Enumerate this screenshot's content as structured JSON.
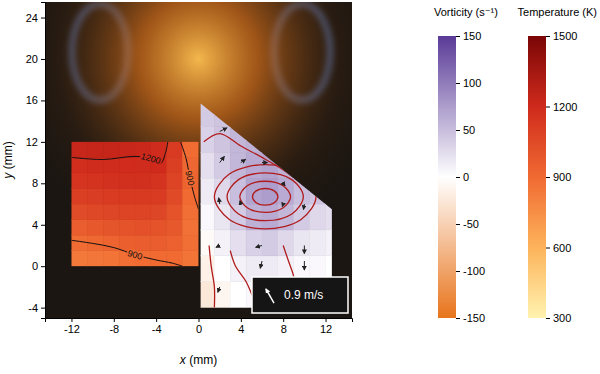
{
  "chart_data": {
    "type": "field",
    "xlabel": "x (mm)",
    "ylabel": "y (mm)",
    "xlim": [
      -14.5,
      14.5
    ],
    "ylim": [
      -5,
      25.5
    ],
    "xticks": [
      -12,
      -8,
      -4,
      0,
      4,
      8,
      12
    ],
    "yticks": [
      -4,
      0,
      4,
      8,
      12,
      16,
      20,
      24
    ],
    "temperature": {
      "x_edges": [
        -12,
        -10.5,
        -9,
        -7.5,
        -6,
        -4.5,
        -3,
        -1.5,
        0
      ],
      "y_edges": [
        0,
        1.5,
        3,
        4.5,
        6,
        7.5,
        9,
        10.5,
        12
      ],
      "cells": [
        [
          840,
          850,
          860,
          880,
          890,
          900,
          900,
          860
        ],
        [
          890,
          910,
          930,
          950,
          960,
          960,
          940,
          880
        ],
        [
          960,
          980,
          1000,
          1010,
          1020,
          1010,
          980,
          870
        ],
        [
          1040,
          1060,
          1070,
          1080,
          1080,
          1070,
          1010,
          880
        ],
        [
          1100,
          1110,
          1120,
          1130,
          1130,
          1120,
          1050,
          900
        ],
        [
          1150,
          1160,
          1165,
          1170,
          1170,
          1160,
          1080,
          930
        ],
        [
          1180,
          1190,
          1190,
          1195,
          1190,
          1200,
          1100,
          920
        ],
        [
          1230,
          1235,
          1235,
          1230,
          1220,
          1190,
          1120,
          890
        ]
      ],
      "contours": [
        {
          "level": 1200,
          "x": [
            -12,
            -9,
            -6,
            -4.5,
            -3.6,
            -3.1,
            -2.9
          ],
          "y": [
            10.5,
            10.3,
            10.6,
            10.4,
            9.9,
            11,
            12
          ]
        },
        {
          "level": 900,
          "x": [
            -1.7,
            -1.2,
            -0.8,
            -0.4,
            0
          ],
          "y": [
            12,
            10.5,
            8.5,
            6.8,
            5.5
          ]
        },
        {
          "level": 900,
          "x": [
            -12,
            -10,
            -8,
            -6,
            -4,
            -2.5,
            -1.5
          ],
          "y": [
            2.5,
            2.2,
            1.8,
            1.1,
            0.6,
            0.3,
            0
          ]
        }
      ],
      "colorbar": {
        "title": "Temperature (K)",
        "range": [
          300,
          1500
        ],
        "ticks": [
          300,
          600,
          900,
          1200,
          1500
        ]
      }
    },
    "vorticity": {
      "region": {
        "x": [
          0.2,
          0.2,
          12.6,
          12.6
        ],
        "y": [
          -4,
          15.7,
          5.5,
          -4
        ]
      },
      "x_edges": [
        0,
        1.5,
        3,
        4.5,
        6,
        7.5,
        9,
        10.5,
        12,
        13.5
      ],
      "y_edges": [
        -4,
        -1.5,
        1,
        3.5,
        6,
        8.5,
        11,
        13.5,
        16
      ],
      "cells": [
        [
          -25,
          -10,
          0,
          5,
          5,
          0,
          0,
          0,
          0
        ],
        [
          -15,
          0,
          10,
          15,
          15,
          10,
          5,
          5,
          0
        ],
        [
          -5,
          10,
          25,
          35,
          40,
          30,
          20,
          15,
          10
        ],
        [
          5,
          20,
          40,
          60,
          65,
          55,
          40,
          30,
          25
        ],
        [
          15,
          30,
          50,
          70,
          75,
          65,
          50,
          45,
          null
        ],
        [
          25,
          40,
          55,
          65,
          70,
          60,
          null,
          null,
          null
        ],
        [
          35,
          45,
          55,
          60,
          null,
          null,
          null,
          null,
          null
        ],
        [
          40,
          45,
          null,
          null,
          null,
          null,
          null,
          null,
          null
        ]
      ],
      "closed_streamlines": [
        {
          "x": [
            7.5,
            7.15,
            6.3,
            5.45,
            5.1,
            5.45,
            6.3,
            7.15
          ],
          "y": [
            6.7,
            7.27,
            7.5,
            7.27,
            6.7,
            6.13,
            5.9,
            6.13
          ]
        },
        {
          "x": [
            8.7,
            8.0,
            6.3,
            4.6,
            3.9,
            4.6,
            6.3,
            8.0
          ],
          "y": [
            6.7,
            7.76,
            8.2,
            7.76,
            6.7,
            5.64,
            5.2,
            5.64
          ]
        },
        {
          "x": [
            9.9,
            8.85,
            6.3,
            3.75,
            2.7,
            3.75,
            6.3,
            8.85
          ],
          "y": [
            6.7,
            8.33,
            9.0,
            8.33,
            6.7,
            5.07,
            4.4,
            5.07
          ]
        },
        {
          "x": [
            11.1,
            9.69,
            6.3,
            2.91,
            1.5,
            2.91,
            6.3,
            9.69
          ],
          "y": [
            6.7,
            8.89,
            9.8,
            8.89,
            6.7,
            4.51,
            3.6,
            4.51
          ]
        }
      ],
      "open_streamlines": [
        {
          "x": [
            3,
            3.5,
            4.5,
            5.5
          ],
          "y": [
            1.5,
            0,
            -1.5,
            -4
          ]
        },
        {
          "x": [
            8,
            8.5,
            9,
            9.5
          ],
          "y": [
            2,
            0.5,
            -1,
            -4
          ]
        },
        {
          "x": [
            1,
            1.2,
            1.5,
            1.5
          ],
          "y": [
            2,
            0,
            -2,
            -4
          ]
        },
        {
          "x": [
            0.5,
            2,
            4,
            6,
            8,
            10
          ],
          "y": [
            12,
            12.8,
            11.6,
            10.5,
            9.3,
            7.8
          ]
        }
      ],
      "vectors": {
        "x": [
          2,
          4,
          2,
          6,
          8,
          2,
          4,
          8,
          10,
          2,
          6,
          10,
          2,
          6,
          10
        ],
        "y": [
          13,
          10,
          10,
          10,
          8,
          6,
          6,
          6,
          6,
          2,
          2,
          2,
          -2,
          0.5,
          0.5
        ],
        "u": [
          0.4,
          0.26,
          0.26,
          0.3,
          0.1,
          -0.05,
          -0.05,
          -0.05,
          -0.05,
          -0.2,
          -0.35,
          0,
          -0.1,
          -0.1,
          0
        ],
        "v": [
          0.2,
          0.18,
          0.34,
          0,
          -0.14,
          0.34,
          0.18,
          -0.14,
          -0.3,
          -0.1,
          -0.1,
          -0.45,
          -0.3,
          -0.4,
          -0.5
        ]
      },
      "reference_vector": {
        "value": 0.9,
        "label": "0.9 m/s"
      },
      "colorbar": {
        "title": "Vorticity (s⁻¹)",
        "range": [
          -150,
          150
        ],
        "ticks": [
          -150,
          -100,
          -50,
          0,
          50,
          100,
          150
        ]
      }
    }
  }
}
